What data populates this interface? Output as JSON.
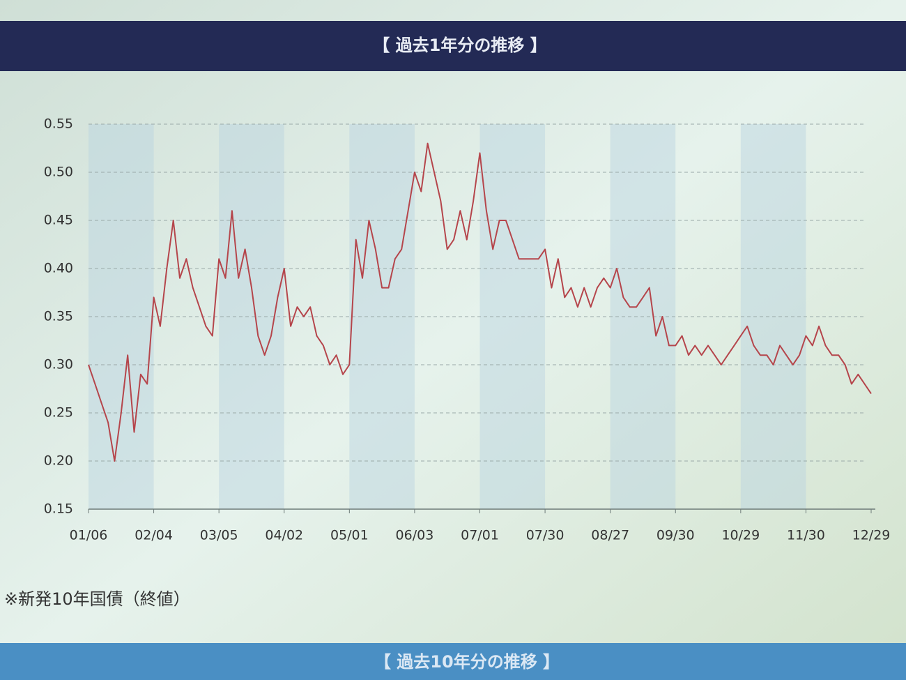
{
  "header": {
    "title": "【 過去1年分の推移 】"
  },
  "chart_data": {
    "type": "line",
    "color": "#b5454b",
    "grid": true,
    "categories": [
      "01/06",
      null,
      null,
      null,
      null,
      null,
      null,
      null,
      null,
      null,
      "02/04",
      null,
      null,
      null,
      null,
      null,
      null,
      null,
      null,
      null,
      "03/05",
      null,
      null,
      null,
      null,
      null,
      null,
      null,
      null,
      null,
      "04/02",
      null,
      null,
      null,
      null,
      null,
      null,
      null,
      null,
      null,
      "05/01",
      null,
      null,
      null,
      null,
      null,
      null,
      null,
      null,
      null,
      "06/03",
      null,
      null,
      null,
      null,
      null,
      null,
      null,
      null,
      null,
      "07/01",
      null,
      null,
      null,
      null,
      null,
      null,
      null,
      null,
      null,
      "07/30",
      null,
      null,
      null,
      null,
      null,
      null,
      null,
      null,
      null,
      "08/27",
      null,
      null,
      null,
      null,
      null,
      null,
      null,
      null,
      null,
      "09/30",
      null,
      null,
      null,
      null,
      null,
      null,
      null,
      null,
      null,
      "10/29",
      null,
      null,
      null,
      null,
      null,
      null,
      null,
      null,
      null,
      "11/30",
      null,
      null,
      null,
      null,
      null,
      null,
      null,
      null,
      null,
      "12/29"
    ],
    "values": [
      0.3,
      0.28,
      0.26,
      0.24,
      0.2,
      0.25,
      0.31,
      0.23,
      0.29,
      0.28,
      0.37,
      0.34,
      0.4,
      0.45,
      0.39,
      0.41,
      0.38,
      0.36,
      0.34,
      0.33,
      0.41,
      0.39,
      0.46,
      0.39,
      0.42,
      0.38,
      0.33,
      0.31,
      0.33,
      0.37,
      0.4,
      0.34,
      0.36,
      0.35,
      0.36,
      0.33,
      0.32,
      0.3,
      0.31,
      0.29,
      0.3,
      0.43,
      0.39,
      0.45,
      0.42,
      0.38,
      0.38,
      0.41,
      0.42,
      0.46,
      0.5,
      0.48,
      0.53,
      0.5,
      0.47,
      0.42,
      0.43,
      0.46,
      0.43,
      0.47,
      0.52,
      0.46,
      0.42,
      0.45,
      0.45,
      0.43,
      0.41,
      0.41,
      0.41,
      0.41,
      0.42,
      0.38,
      0.41,
      0.37,
      0.38,
      0.36,
      0.38,
      0.36,
      0.38,
      0.39,
      0.38,
      0.4,
      0.37,
      0.36,
      0.36,
      0.37,
      0.38,
      0.33,
      0.35,
      0.32,
      0.32,
      0.33,
      0.31,
      0.32,
      0.31,
      0.32,
      0.31,
      0.3,
      0.31,
      0.32,
      0.33,
      0.34,
      0.32,
      0.31,
      0.31,
      0.3,
      0.32,
      0.31,
      0.3,
      0.31,
      0.33,
      0.32,
      0.34,
      0.32,
      0.31,
      0.31,
      0.3,
      0.28,
      0.29,
      0.28,
      0.27
    ],
    "ylim": [
      0.15,
      0.55
    ],
    "yticks": [
      0.15,
      {
        "value": 0.2,
        "label": "0.20"
      },
      0.25,
      {
        "value": 0.3,
        "label": "0.30"
      },
      0.35,
      {
        "value": 0.4,
        "label": "0.40"
      },
      0.45,
      {
        "value": 0.5,
        "label": "0.50"
      },
      0.55
    ]
  },
  "note": "※新発10年国債（終値）",
  "next_header": {
    "title": "【 過去10年分の推移 】"
  }
}
